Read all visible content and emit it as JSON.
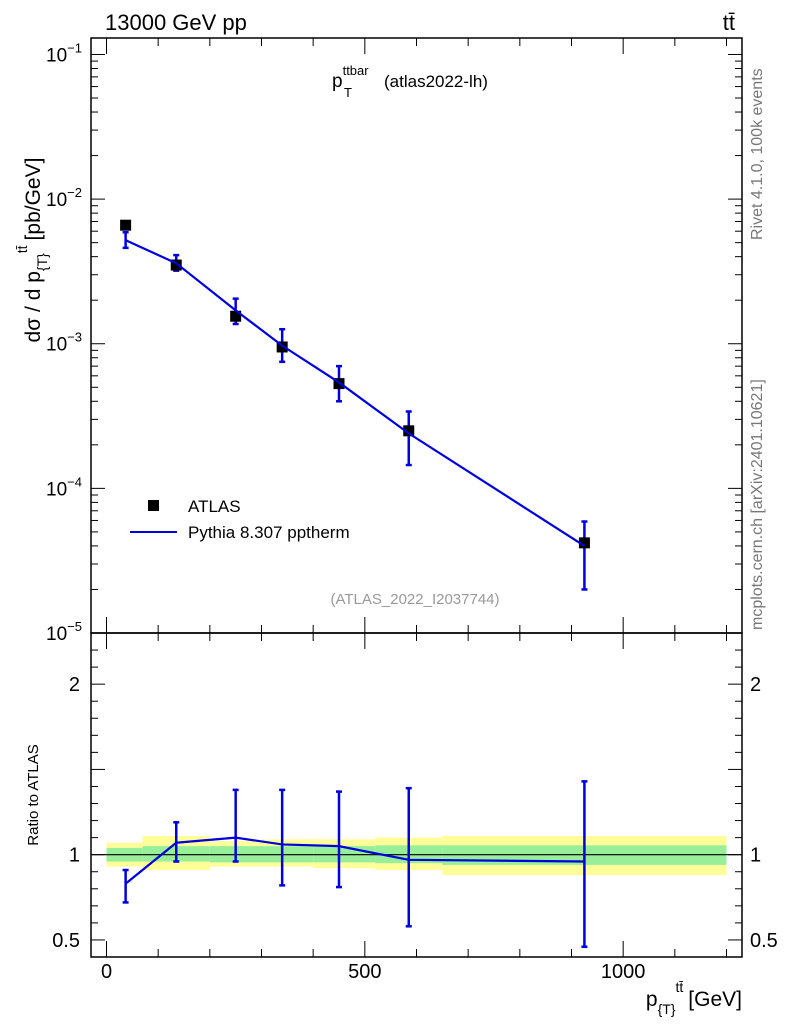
{
  "header": {
    "left_title": "13000 GeV pp",
    "process": "tt̄"
  },
  "side_labels": {
    "rivet": "Rivet 4.1.0,  100k events",
    "mcplots": "mcplots.cern.ch [arXiv:2401.10621]"
  },
  "chart_data": [
    {
      "type": "line",
      "panel": "main",
      "title": "p_T^ttbar (atlas2022-lh)",
      "title_base": "p",
      "title_sup": "ttbar",
      "title_sub": "T",
      "title_suffix": "(atlas2022-lh)",
      "ylabel": "dσ / d p_{T}^tt̄ [pb/GeV]",
      "ylabel_main": "dσ / d p",
      "ylabel_sub": "{T}",
      "ylabel_sup": "tt̄",
      "ylabel_unit": "[pb/GeV]",
      "yscale": "log",
      "ylim": [
        1e-05,
        0.13
      ],
      "y_ticks": [
        {
          "value": 1e-05,
          "label_base": "10",
          "label_exp": "−5"
        },
        {
          "value": 0.0001,
          "label_base": "10",
          "label_exp": "−4"
        },
        {
          "value": 0.001,
          "label_base": "10",
          "label_exp": "−3"
        },
        {
          "value": 0.01,
          "label_base": "10",
          "label_exp": "−2"
        },
        {
          "value": 0.1,
          "label_base": "10",
          "label_exp": "−1"
        }
      ],
      "xlim": [
        -30,
        1230
      ],
      "watermark": "(ATLAS_2022_I2037744)",
      "legend_position": "bottom-left",
      "series": [
        {
          "name": "ATLAS",
          "kind": "data-points",
          "color": "#000000",
          "x": [
            37,
            135,
            250,
            340,
            450,
            585,
            925
          ],
          "y": [
            0.0066,
            0.0035,
            0.00155,
            0.00095,
            0.00053,
            0.00025,
            4.2e-05
          ]
        },
        {
          "name": "Pythia 8.307 pptherm",
          "kind": "mc-line",
          "color": "#0000dd",
          "x": [
            37,
            135,
            250,
            340,
            450,
            585,
            925
          ],
          "y": [
            0.0052,
            0.0036,
            0.0017,
            0.00097,
            0.00054,
            0.00024,
            4e-05
          ],
          "yerr_low": [
            0.0046,
            0.0032,
            0.00137,
            0.00075,
            0.0004,
            0.000145,
            2e-05
          ],
          "yerr_high": [
            0.0059,
            0.0041,
            0.00205,
            0.00126,
            0.0007,
            0.00034,
            5.9e-05
          ]
        }
      ]
    },
    {
      "type": "line",
      "panel": "ratio",
      "ylabel": "Ratio to ATLAS",
      "xlabel": "p_{T}^tt̄ [GeV]",
      "xlabel_main": "p",
      "xlabel_sub": "{T}",
      "xlabel_sup": "tt̄",
      "xlabel_unit": "[GeV]",
      "ylim": [
        0.4,
        2.3
      ],
      "xlim": [
        -30,
        1230
      ],
      "y_ticks": [
        {
          "value": 0.5,
          "label": "0.5"
        },
        {
          "value": 1,
          "label": "1"
        },
        {
          "value": 2,
          "label": "2"
        }
      ],
      "x_ticks": [
        {
          "value": 0,
          "label": "0"
        },
        {
          "value": 500,
          "label": "500"
        },
        {
          "value": 1000,
          "label": "1000"
        }
      ],
      "uncertainty_bands": [
        {
          "x_low": 0,
          "x_high": 70,
          "inner": [
            0.96,
            1.04
          ],
          "outer": [
            0.93,
            1.07
          ]
        },
        {
          "x_low": 70,
          "x_high": 200,
          "inner": [
            0.96,
            1.05
          ],
          "outer": [
            0.91,
            1.11
          ]
        },
        {
          "x_low": 200,
          "x_high": 300,
          "inner": [
            0.955,
            1.05
          ],
          "outer": [
            0.93,
            1.08
          ]
        },
        {
          "x_low": 300,
          "x_high": 400,
          "inner": [
            0.955,
            1.05
          ],
          "outer": [
            0.93,
            1.09
          ]
        },
        {
          "x_low": 400,
          "x_high": 520,
          "inner": [
            0.955,
            1.05
          ],
          "outer": [
            0.92,
            1.09
          ]
        },
        {
          "x_low": 520,
          "x_high": 650,
          "inner": [
            0.95,
            1.055
          ],
          "outer": [
            0.91,
            1.1
          ]
        },
        {
          "x_low": 650,
          "x_high": 1200,
          "inner": [
            0.94,
            1.055
          ],
          "outer": [
            0.88,
            1.11
          ]
        }
      ],
      "series": [
        {
          "name": "Pythia 8.307 pptherm / ATLAS",
          "color": "#0000dd",
          "x": [
            37,
            135,
            250,
            340,
            450,
            585,
            925
          ],
          "y": [
            0.83,
            1.07,
            1.1,
            1.06,
            1.05,
            0.97,
            0.96
          ],
          "yerr_low": [
            0.72,
            0.96,
            0.96,
            0.82,
            0.81,
            0.58,
            0.46
          ],
          "yerr_high": [
            0.91,
            1.19,
            1.38,
            1.38,
            1.37,
            1.39,
            1.43
          ]
        }
      ]
    }
  ]
}
